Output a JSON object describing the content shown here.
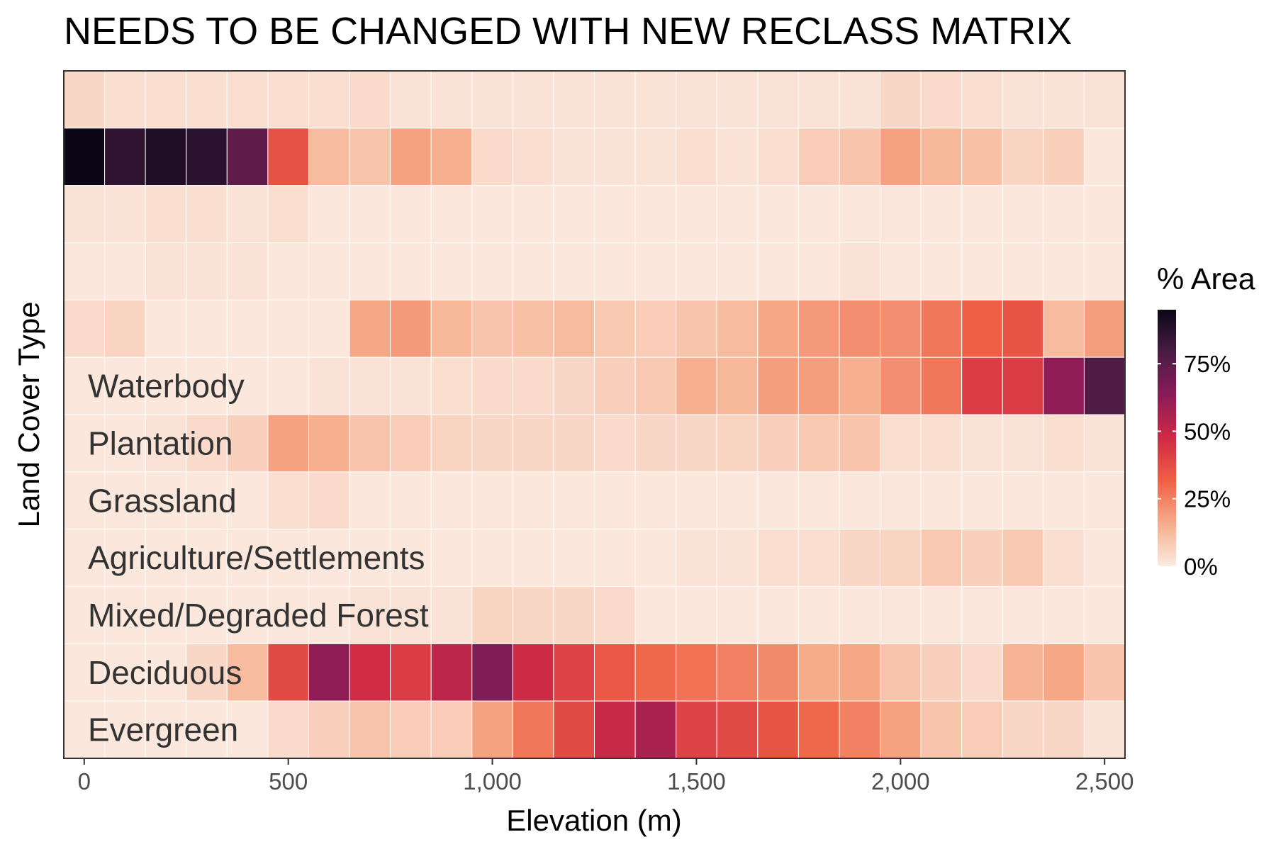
{
  "chart_data": {
    "type": "heatmap",
    "title": "NEEDS TO BE CHANGED WITH NEW RECLASS MATRIX",
    "xlabel": "Elevation (m)",
    "ylabel": "Land Cover Type",
    "x_bin_centers": [
      0,
      100,
      200,
      300,
      400,
      500,
      600,
      700,
      800,
      900,
      1000,
      1100,
      1200,
      1300,
      1400,
      1500,
      1600,
      1700,
      1800,
      1900,
      2000,
      2100,
      2200,
      2300,
      2400,
      2500
    ],
    "xlim": [
      -50,
      2550
    ],
    "x_ticks": [
      0,
      500,
      1000,
      1500,
      2000,
      2500
    ],
    "x_tick_labels": [
      "0",
      "500",
      "1,000",
      "1,500",
      "2,000",
      "2,500"
    ],
    "rows": [
      {
        "label": "",
        "values": [
          5,
          3,
          3,
          3,
          3,
          3,
          3,
          4,
          2,
          2,
          2,
          2,
          2,
          2,
          2,
          2,
          2,
          2,
          2,
          2,
          5,
          4,
          3,
          2,
          2,
          2
        ]
      },
      {
        "label": "",
        "values": [
          95,
          86,
          90,
          87,
          74,
          36,
          12,
          10,
          18,
          15,
          4,
          3,
          2,
          2,
          2,
          3,
          2,
          3,
          8,
          10,
          18,
          13,
          11,
          6,
          7,
          1
        ]
      },
      {
        "label": "",
        "values": [
          2,
          2,
          3,
          3,
          2,
          3,
          1,
          1,
          1,
          1,
          1,
          1,
          1,
          1,
          1,
          1,
          1,
          1,
          1,
          1,
          1,
          1,
          1,
          1,
          1,
          1
        ]
      },
      {
        "label": "",
        "values": [
          1,
          1,
          2,
          2,
          2,
          1,
          1,
          1,
          1,
          1,
          1,
          1,
          1,
          1,
          1,
          1,
          1,
          1,
          1,
          2,
          1,
          1,
          1,
          1,
          1,
          1
        ]
      },
      {
        "label": "",
        "values": [
          4,
          6,
          1,
          1,
          1,
          1,
          1,
          17,
          20,
          13,
          10,
          11,
          12,
          9,
          8,
          10,
          12,
          17,
          20,
          22,
          22,
          27,
          32,
          35,
          12,
          19
        ]
      },
      {
        "label": "Waterbody",
        "values": [
          1,
          1,
          1,
          1,
          1,
          1,
          2,
          2,
          2,
          3,
          4,
          4,
          5,
          7,
          9,
          15,
          13,
          19,
          19,
          15,
          22,
          27,
          42,
          42,
          62,
          78
        ]
      },
      {
        "label": "Plantation",
        "values": [
          1,
          1,
          2,
          4,
          7,
          18,
          15,
          10,
          8,
          6,
          5,
          5,
          5,
          4,
          5,
          5,
          6,
          7,
          9,
          10,
          3,
          3,
          2,
          2,
          3,
          2
        ]
      },
      {
        "label": "Grassland",
        "values": [
          1,
          1,
          1,
          1,
          1,
          3,
          4,
          1,
          1,
          1,
          1,
          1,
          1,
          1,
          1,
          1,
          1,
          1,
          1,
          1,
          1,
          1,
          1,
          1,
          1,
          1
        ]
      },
      {
        "label": "Agriculture/Settlements",
        "values": [
          1,
          1,
          1,
          1,
          1,
          1,
          1,
          1,
          1,
          1,
          1,
          1,
          1,
          1,
          1,
          2,
          2,
          3,
          3,
          5,
          6,
          9,
          7,
          9,
          3,
          1
        ]
      },
      {
        "label": "Mixed/Degraded Forest",
        "values": [
          1,
          1,
          1,
          1,
          1,
          1,
          1,
          2,
          2,
          2,
          6,
          5,
          5,
          4,
          1,
          1,
          1,
          1,
          1,
          1,
          1,
          1,
          1,
          1,
          1,
          1
        ]
      },
      {
        "label": "Deciduous",
        "values": [
          1,
          1,
          1,
          5,
          12,
          38,
          62,
          47,
          42,
          52,
          66,
          48,
          40,
          34,
          30,
          28,
          25,
          23,
          16,
          17,
          10,
          7,
          4,
          14,
          17,
          10
        ]
      },
      {
        "label": "Evergreen",
        "values": [
          1,
          1,
          1,
          1,
          1,
          4,
          7,
          10,
          8,
          8,
          18,
          27,
          38,
          49,
          56,
          40,
          38,
          35,
          30,
          25,
          18,
          10,
          8,
          5,
          5,
          2
        ]
      }
    ],
    "color_scale": {
      "title": "% Area",
      "min": 0,
      "max": 95,
      "ticks": [
        0,
        25,
        50,
        75
      ],
      "tick_labels": [
        "0%",
        "25%",
        "50%",
        "75%"
      ],
      "stops": [
        "#fbebe1",
        "#f6ad8b",
        "#ef6045",
        "#cf2a45",
        "#8a1b58",
        "#4a1c45",
        "#0b0716"
      ]
    },
    "grid": true,
    "legend_placement": "right",
    "tile_border_color": "#ffffff"
  }
}
